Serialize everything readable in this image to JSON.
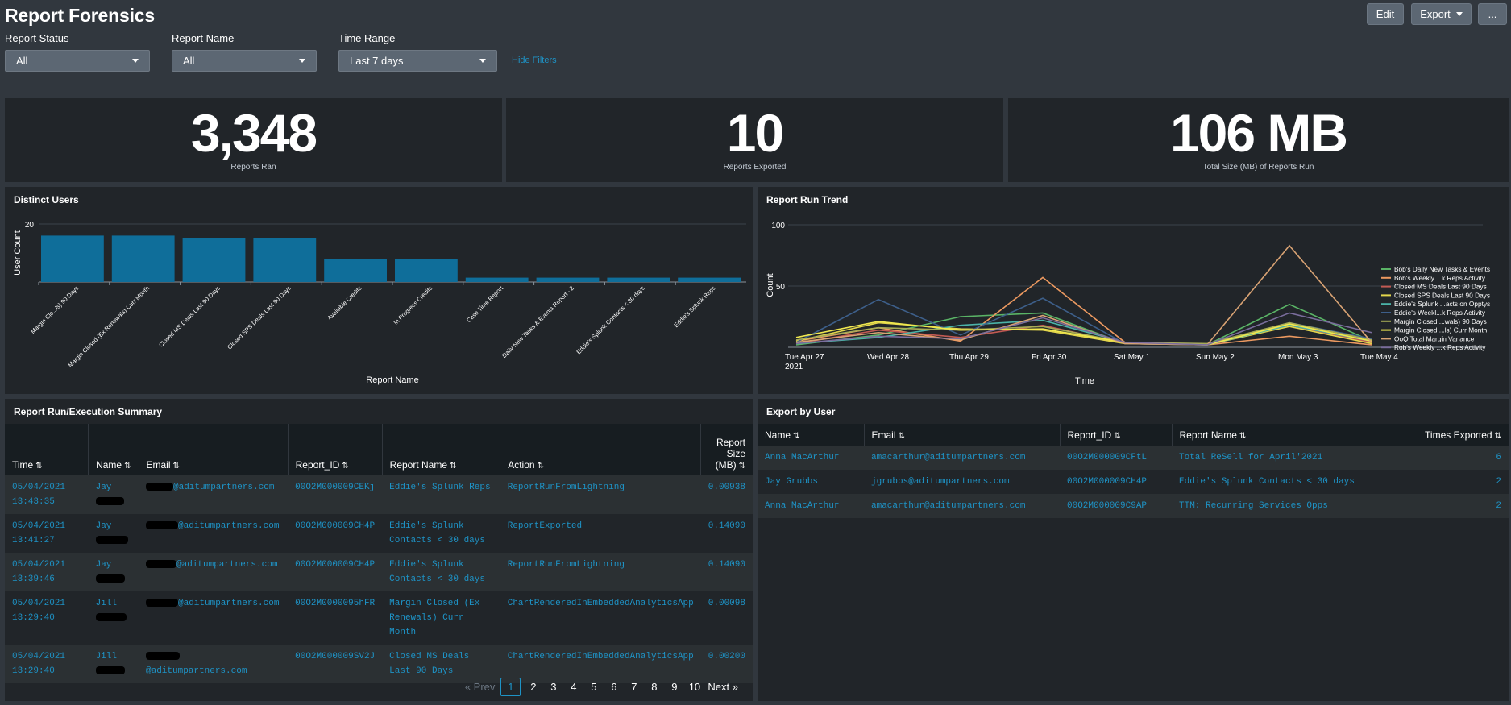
{
  "header": {
    "title": "Report Forensics",
    "edit_label": "Edit",
    "export_label": "Export",
    "more_label": "..."
  },
  "filters": {
    "report_status": {
      "label": "Report Status",
      "value": "All"
    },
    "report_name": {
      "label": "Report Name",
      "value": "All"
    },
    "time_range": {
      "label": "Time Range",
      "value": "Last 7 days"
    },
    "hide_label": "Hide Filters"
  },
  "kpis": [
    {
      "value": "3,348",
      "label": "Reports Ran"
    },
    {
      "value": "10",
      "label": "Reports Exported"
    },
    {
      "value": "106 MB",
      "label": "Total Size (MB) of Reports Run"
    }
  ],
  "distinct_users": {
    "title": "Distinct Users",
    "chart_data": {
      "type": "bar",
      "ylabel": "User Count",
      "xlabel": "Report Name",
      "ylim": [
        0,
        20
      ],
      "yticks": [
        20
      ],
      "color": "#0f6e9a",
      "categories": [
        "Margin Clo...ls) 90 Days",
        "Margin Closed (Ex Renewals) Curr Month",
        "Closed MS Deals Last 90 Days",
        "Closed SPS Deals Last 90 Days",
        "Available Credits",
        "In Progress Credits",
        "Case Time Report",
        "Daily New Tasks & Events Report - 2",
        "Eddie's Splunk Contacts < 30 days",
        "Eddie's Splunk Reps"
      ],
      "values": [
        16,
        16,
        15,
        15,
        8,
        8,
        1.5,
        1.5,
        1.5,
        1.5
      ]
    }
  },
  "run_trend": {
    "title": "Report Run Trend",
    "chart_data": {
      "type": "line",
      "ylabel": "Count",
      "xlabel": "Time",
      "ylim": [
        0,
        100
      ],
      "yticks": [
        50,
        100
      ],
      "x": [
        "Tue Apr 27 2021",
        "Wed Apr 28",
        "Thu Apr 29",
        "Fri Apr 30",
        "Sat May 1",
        "Sun May 2",
        "Mon May 3",
        "Tue May 4"
      ],
      "series": [
        {
          "name": "Bob's Daily New Tasks & Events",
          "color": "#5ab466",
          "values": [
            2,
            10,
            25,
            28,
            3,
            2,
            35,
            5
          ]
        },
        {
          "name": "Bob's Weekly ...k Reps Activity",
          "color": "#ec9960",
          "values": [
            5,
            16,
            5,
            57,
            4,
            2,
            9,
            2
          ]
        },
        {
          "name": "Closed MS Deals Last 90 Days",
          "color": "#c25a53",
          "values": [
            3,
            14,
            8,
            18,
            3,
            2,
            18,
            4
          ]
        },
        {
          "name": "Closed SPS Deals Last 90 Days",
          "color": "#e3d64c",
          "values": [
            5,
            20,
            15,
            14,
            3,
            2,
            17,
            3
          ]
        },
        {
          "name": "Eddie's Splunk ...acts on Opptys",
          "color": "#4bb3a8",
          "values": [
            3,
            8,
            18,
            22,
            4,
            2,
            18,
            5
          ]
        },
        {
          "name": "Eddie's Weekl...k Reps Activity",
          "color": "#3d5f8a",
          "values": [
            4,
            39,
            10,
            40,
            3,
            2,
            20,
            7
          ]
        },
        {
          "name": "Margin Closed ...wals) 90 Days",
          "color": "#a6ab56",
          "values": [
            6,
            16,
            14,
            17,
            4,
            3,
            20,
            6
          ]
        },
        {
          "name": "Margin Closed ...ls) Curr Month",
          "color": "#f0e84f",
          "values": [
            8,
            21,
            14,
            15,
            4,
            2,
            19,
            5
          ]
        },
        {
          "name": "QoQ Total Margin Variance",
          "color": "#d9a374",
          "values": [
            4,
            12,
            6,
            26,
            3,
            2,
            83,
            4
          ]
        },
        {
          "name": "Rob's Weekly ...k Reps Activity",
          "color": "#7a6d9c",
          "values": [
            3,
            9,
            7,
            24,
            4,
            2,
            28,
            12
          ]
        }
      ]
    }
  },
  "exec_summary": {
    "title": "Report Run/Execution Summary",
    "columns": [
      "Time",
      "Name",
      "Email",
      "Report_ID",
      "Report Name",
      "Action",
      "Report Size (MB)"
    ],
    "rows": [
      {
        "time": "05/04/2021 13:43:35",
        "name": "Jay",
        "email": "@aditumpartners.com",
        "report_id": "00O2M000009CEKj",
        "report_name": "Eddie's Splunk Reps",
        "action": "ReportRunFromLightning",
        "size": "0.00938"
      },
      {
        "time": "05/04/2021 13:41:27",
        "name": "Jay",
        "email": "@aditumpartners.com",
        "report_id": "00O2M000009CH4P",
        "report_name": "Eddie's Splunk Contacts < 30 days",
        "action": "ReportExported",
        "size": "0.14090"
      },
      {
        "time": "05/04/2021 13:39:46",
        "name": "Jay",
        "email": "@aditumpartners.com",
        "report_id": "00O2M000009CH4P",
        "report_name": "Eddie's Splunk Contacts < 30 days",
        "action": "ReportRunFromLightning",
        "size": "0.14090"
      },
      {
        "time": "05/04/2021 13:29:40",
        "name": "Jill",
        "email": "@aditumpartners.com",
        "report_id": "00O2M0000095hFR",
        "report_name": "Margin Closed (Ex Renewals) Curr Month",
        "action": "ChartRenderedInEmbeddedAnalyticsApp",
        "size": "0.00098"
      },
      {
        "time": "05/04/2021 13:29:40",
        "name": "Jill",
        "email": "@aditumpartners.com",
        "report_id": "00O2M000009SV2J",
        "report_name": "Closed MS Deals Last 90 Days",
        "action": "ChartRenderedInEmbeddedAnalyticsApp",
        "size": "0.00200"
      }
    ],
    "pager": {
      "prev": "« Prev",
      "pages": [
        "1",
        "2",
        "3",
        "4",
        "5",
        "6",
        "7",
        "8",
        "9",
        "10"
      ],
      "current": "1",
      "next": "Next »"
    }
  },
  "export_by_user": {
    "title": "Export by User",
    "columns": [
      "Name",
      "Email",
      "Report_ID",
      "Report Name",
      "Times Exported"
    ],
    "rows": [
      {
        "name": "Anna MacArthur",
        "email": "amacarthur@aditumpartners.com",
        "report_id": "00O2M000009CFtL",
        "report_name": "Total ReSell for April'2021",
        "times": "6"
      },
      {
        "name": "Jay Grubbs",
        "email": "jgrubbs@aditumpartners.com",
        "report_id": "00O2M000009CH4P",
        "report_name": "Eddie's Splunk Contacts < 30 days",
        "times": "2"
      },
      {
        "name": "Anna MacArthur",
        "email": "amacarthur@aditumpartners.com",
        "report_id": "00O2M000009C9AP",
        "report_name": "TTM: Recurring Services Opps",
        "times": "2"
      }
    ]
  }
}
